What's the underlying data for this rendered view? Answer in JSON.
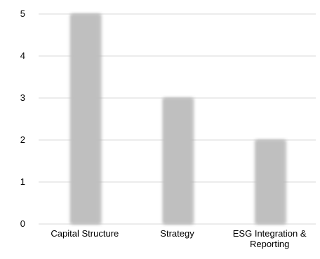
{
  "chart_data": {
    "type": "bar",
    "categories": [
      "Capital Structure",
      "Strategy",
      "ESG Integration & Reporting"
    ],
    "category_label_lines": [
      [
        "Capital Structure"
      ],
      [
        "Strategy"
      ],
      [
        "ESG Integration &",
        "Reporting"
      ]
    ],
    "values": [
      5,
      3,
      2
    ],
    "title": "",
    "xlabel": "",
    "ylabel": "",
    "ylim": [
      0,
      5
    ],
    "yticks": [
      0,
      1,
      2,
      3,
      4,
      5
    ],
    "grid": true,
    "legend": "none",
    "colors": {
      "bar": "#bfbfbf",
      "bar_shadow": "#8c8c8c",
      "grid": "#d9d9d9",
      "axis": "#d9d9d9",
      "text": "#000000"
    }
  }
}
